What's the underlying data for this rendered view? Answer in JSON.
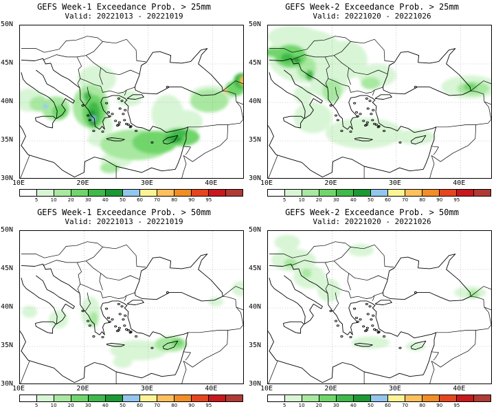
{
  "panels": [
    {
      "title": "GEFS Week-1 Exceedance Prob. > 25mm",
      "valid": "Valid: 20221013 - 20221019",
      "blobs": [
        {
          "lon": 11.5,
          "lat": 40.3,
          "rx": 2.5,
          "ry": 1.5,
          "c": 1
        },
        {
          "lon": 15.6,
          "lat": 39.2,
          "rx": 2.2,
          "ry": 1.6,
          "c": 2
        },
        {
          "lon": 16.2,
          "lat": 38.8,
          "rx": 1.2,
          "ry": 0.9,
          "c": 3
        },
        {
          "lon": 13.0,
          "lat": 39.8,
          "rx": 1.5,
          "ry": 1.0,
          "c": 2
        },
        {
          "lon": 14.0,
          "lat": 39.5,
          "rx": 0.4,
          "ry": 0.3,
          "c": 6
        },
        {
          "lon": 21.0,
          "lat": 39.5,
          "rx": 2.8,
          "ry": 2.8,
          "c": 2
        },
        {
          "lon": 21.5,
          "lat": 38.8,
          "rx": 1.8,
          "ry": 2.2,
          "c": 3
        },
        {
          "lon": 21.5,
          "lat": 38.5,
          "rx": 1.0,
          "ry": 1.6,
          "c": 4
        },
        {
          "lon": 21.3,
          "lat": 38.0,
          "rx": 0.6,
          "ry": 1.0,
          "c": 5
        },
        {
          "lon": 21.5,
          "lat": 37.9,
          "rx": 0.3,
          "ry": 0.4,
          "c": 6
        },
        {
          "lon": 20.5,
          "lat": 40.8,
          "rx": 0.6,
          "ry": 0.6,
          "c": 4
        },
        {
          "lon": 22.5,
          "lat": 37.0,
          "rx": 2.0,
          "ry": 1.5,
          "c": 1
        },
        {
          "lon": 23.0,
          "lat": 35.2,
          "rx": 2.5,
          "ry": 1.0,
          "c": 1
        },
        {
          "lon": 28.0,
          "lat": 34.5,
          "rx": 5.5,
          "ry": 2.0,
          "c": 2
        },
        {
          "lon": 31.0,
          "lat": 34.8,
          "rx": 3.5,
          "ry": 1.5,
          "c": 3
        },
        {
          "lon": 25.0,
          "lat": 32.5,
          "rx": 2.5,
          "ry": 1.0,
          "c": 1
        },
        {
          "lon": 24.0,
          "lat": 31.5,
          "rx": 1.5,
          "ry": 0.7,
          "c": 2
        },
        {
          "lon": 35.0,
          "lat": 35.5,
          "rx": 3.0,
          "ry": 1.2,
          "c": 3
        },
        {
          "lon": 34.0,
          "lat": 35.3,
          "rx": 1.5,
          "ry": 0.6,
          "c": 4
        },
        {
          "lon": 34.3,
          "lat": 35.2,
          "rx": 0.8,
          "ry": 0.3,
          "c": 5
        },
        {
          "lon": 34.8,
          "lat": 36.0,
          "rx": 1.2,
          "ry": 0.5,
          "c": 4
        },
        {
          "lon": 36.0,
          "lat": 37.5,
          "rx": 2.5,
          "ry": 1.5,
          "c": 1
        },
        {
          "lon": 33.0,
          "lat": 38.5,
          "rx": 2.5,
          "ry": 2.5,
          "c": 1
        },
        {
          "lon": 39.5,
          "lat": 40.2,
          "rx": 3.0,
          "ry": 1.5,
          "c": 2
        },
        {
          "lon": 40.0,
          "lat": 41.0,
          "rx": 3.5,
          "ry": 1.2,
          "c": 1
        },
        {
          "lon": 43.5,
          "lat": 41.8,
          "rx": 1.5,
          "ry": 1.0,
          "c": 3
        },
        {
          "lon": 44.5,
          "lat": 42.8,
          "rx": 1.2,
          "ry": 1.0,
          "c": 4
        },
        {
          "lon": 44.8,
          "lat": 42.8,
          "rx": 0.5,
          "ry": 0.6,
          "c": 8
        },
        {
          "lon": 42.0,
          "lat": 41.5,
          "rx": 0.3,
          "ry": 0.3,
          "c": 8
        },
        {
          "lon": 22.0,
          "lat": 43.0,
          "rx": 3.0,
          "ry": 1.8,
          "c": 1
        },
        {
          "lon": 27.0,
          "lat": 40.5,
          "rx": 2.0,
          "ry": 1.0,
          "c": 1
        }
      ]
    },
    {
      "title": "GEFS Week-2 Exceedance Prob. > 25mm",
      "valid": "Valid: 20221020 - 20221026",
      "blobs": [
        {
          "lon": 16.0,
          "lat": 46.0,
          "rx": 6.0,
          "ry": 3.5,
          "c": 1
        },
        {
          "lon": 14.0,
          "lat": 48.5,
          "rx": 4.0,
          "ry": 1.5,
          "c": 1
        },
        {
          "lon": 13.5,
          "lat": 46.0,
          "rx": 2.5,
          "ry": 1.5,
          "c": 3
        },
        {
          "lon": 13.0,
          "lat": 45.8,
          "rx": 1.0,
          "ry": 0.6,
          "c": 4
        },
        {
          "lon": 14.5,
          "lat": 45.5,
          "rx": 0.6,
          "ry": 0.4,
          "c": 5
        },
        {
          "lon": 16.0,
          "lat": 44.5,
          "rx": 1.5,
          "ry": 1.5,
          "c": 2
        },
        {
          "lon": 16.5,
          "lat": 43.5,
          "rx": 0.6,
          "ry": 0.7,
          "c": 4
        },
        {
          "lon": 11.0,
          "lat": 46.5,
          "rx": 1.5,
          "ry": 0.6,
          "c": 3
        },
        {
          "lon": 22.0,
          "lat": 45.5,
          "rx": 3.5,
          "ry": 2.5,
          "c": 1
        },
        {
          "lon": 19.5,
          "lat": 42.5,
          "rx": 3.0,
          "ry": 2.0,
          "c": 1
        },
        {
          "lon": 20.0,
          "lat": 41.5,
          "rx": 1.5,
          "ry": 1.5,
          "c": 2
        },
        {
          "lon": 27.0,
          "lat": 43.5,
          "rx": 3.0,
          "ry": 1.5,
          "c": 1
        },
        {
          "lon": 26.0,
          "lat": 42.5,
          "rx": 1.5,
          "ry": 0.8,
          "c": 2
        },
        {
          "lon": 41.5,
          "lat": 42.0,
          "rx": 4.5,
          "ry": 1.5,
          "c": 1
        },
        {
          "lon": 42.0,
          "lat": 41.8,
          "rx": 2.5,
          "ry": 0.9,
          "c": 2
        },
        {
          "lon": 41.5,
          "lat": 42.0,
          "rx": 1.0,
          "ry": 0.5,
          "c": 3
        },
        {
          "lon": 25.0,
          "lat": 36.0,
          "rx": 6.0,
          "ry": 2.0,
          "c": 1
        },
        {
          "lon": 17.0,
          "lat": 38.0,
          "rx": 3.0,
          "ry": 2.0,
          "c": 1
        },
        {
          "lon": 33.0,
          "lat": 35.5,
          "rx": 3.0,
          "ry": 1.0,
          "c": 1
        },
        {
          "lon": 15.5,
          "lat": 41.0,
          "rx": 1.5,
          "ry": 1.2,
          "c": 1
        }
      ]
    },
    {
      "title": "GEFS Week-1 Exceedance Prob. > 50mm",
      "valid": "Valid: 20221013 - 20221019",
      "blobs": [
        {
          "lon": 11.5,
          "lat": 39.5,
          "rx": 1.2,
          "ry": 0.8,
          "c": 1
        },
        {
          "lon": 16.0,
          "lat": 38.5,
          "rx": 1.5,
          "ry": 1.2,
          "c": 1
        },
        {
          "lon": 21.0,
          "lat": 39.5,
          "rx": 1.5,
          "ry": 2.0,
          "c": 1
        },
        {
          "lon": 21.5,
          "lat": 38.5,
          "rx": 0.7,
          "ry": 1.0,
          "c": 2
        },
        {
          "lon": 28.5,
          "lat": 34.5,
          "rx": 4.5,
          "ry": 1.3,
          "c": 1
        },
        {
          "lon": 33.5,
          "lat": 35.3,
          "rx": 2.5,
          "ry": 1.0,
          "c": 2
        },
        {
          "lon": 34.5,
          "lat": 35.5,
          "rx": 0.9,
          "ry": 0.5,
          "c": 3
        },
        {
          "lon": 26.0,
          "lat": 33.0,
          "rx": 1.5,
          "ry": 0.8,
          "c": 1
        },
        {
          "lon": 44.5,
          "lat": 42.5,
          "rx": 1.5,
          "ry": 1.0,
          "c": 1
        },
        {
          "lon": 40.5,
          "lat": 40.8,
          "rx": 1.2,
          "ry": 0.6,
          "c": 1
        }
      ]
    },
    {
      "title": "GEFS Week-2 Exceedance Prob. > 50mm",
      "valid": "Valid: 20221020 - 20221026",
      "blobs": [
        {
          "lon": 14.0,
          "lat": 46.2,
          "rx": 3.5,
          "ry": 1.5,
          "c": 1
        },
        {
          "lon": 13.5,
          "lat": 45.8,
          "rx": 1.0,
          "ry": 0.6,
          "c": 2
        },
        {
          "lon": 16.5,
          "lat": 44.0,
          "rx": 2.5,
          "ry": 1.5,
          "c": 1
        },
        {
          "lon": 16.0,
          "lat": 44.5,
          "rx": 0.8,
          "ry": 0.6,
          "c": 2
        },
        {
          "lon": 19.5,
          "lat": 42.3,
          "rx": 1.8,
          "ry": 1.5,
          "c": 1
        },
        {
          "lon": 13.0,
          "lat": 48.5,
          "rx": 2.0,
          "ry": 1.0,
          "c": 1
        },
        {
          "lon": 24.5,
          "lat": 47.5,
          "rx": 2.0,
          "ry": 0.8,
          "c": 1
        },
        {
          "lon": 41.5,
          "lat": 42.0,
          "rx": 2.5,
          "ry": 0.8,
          "c": 1
        },
        {
          "lon": 42.0,
          "lat": 41.8,
          "rx": 0.9,
          "ry": 0.5,
          "c": 2
        },
        {
          "lon": 26.0,
          "lat": 35.5,
          "rx": 3.0,
          "ry": 0.8,
          "c": 1
        },
        {
          "lon": 33.0,
          "lat": 35.0,
          "rx": 1.5,
          "ry": 0.6,
          "c": 1
        }
      ]
    }
  ],
  "map": {
    "lon_min": 10,
    "lon_max": 45,
    "lat_min": 30,
    "lat_max": 50,
    "lat_ticks": [
      {
        "v": 50,
        "t": "50N"
      },
      {
        "v": 45,
        "t": "45N"
      },
      {
        "v": 40,
        "t": "40N"
      },
      {
        "v": 35,
        "t": "35N"
      },
      {
        "v": 30,
        "t": "30N"
      }
    ],
    "lon_ticks": [
      {
        "v": 10,
        "t": "10E"
      },
      {
        "v": 20,
        "t": "20E"
      },
      {
        "v": 30,
        "t": "30E"
      },
      {
        "v": 40,
        "t": "40E"
      }
    ]
  },
  "colorbar": {
    "colors": [
      "#ffffff",
      "#d8f5d5",
      "#a8e8a0",
      "#70d66b",
      "#3fb94a",
      "#1b9a33",
      "#93c6ed",
      "#fbf396",
      "#fdc05c",
      "#f38d26",
      "#e6461f",
      "#c8181e",
      "#b03a34"
    ],
    "labels": [
      "5",
      "10",
      "20",
      "30",
      "40",
      "50",
      "60",
      "70",
      "80",
      "90",
      "95"
    ]
  }
}
